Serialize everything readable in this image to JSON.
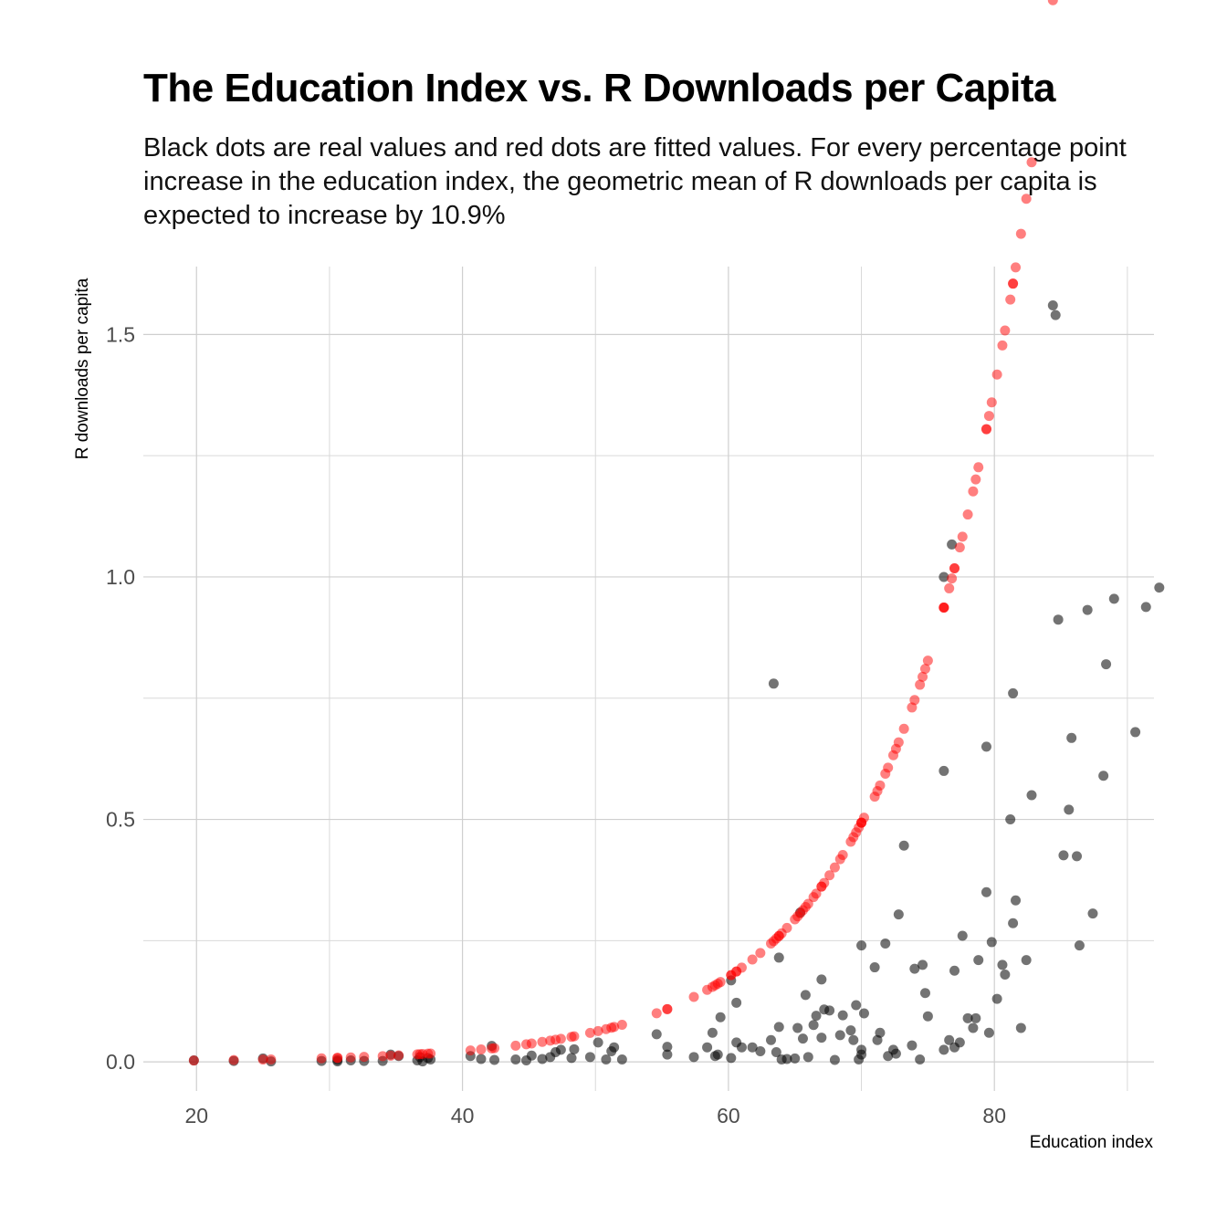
{
  "chart_data": {
    "type": "scatter",
    "title": "The Education Index vs. R Downloads per Capita",
    "subtitle": "Black dots are real values and red dots are fitted values. For every percentage point increase in the education index, the geometric mean of R downloads per capita is expected to increase by 10.9%",
    "xlabel": "Education index",
    "ylabel": "R downloads per capita",
    "xlim": [
      16,
      92
    ],
    "ylim": [
      -0.06,
      1.64
    ],
    "x_ticks": [
      20,
      40,
      60,
      80
    ],
    "x_tick_labels": [
      "20",
      "40",
      "60",
      "80"
    ],
    "y_ticks": [
      0.0,
      0.5,
      1.0,
      1.5
    ],
    "y_tick_labels": [
      "0.0",
      "0.5",
      "1.0",
      "1.5"
    ],
    "grid": true,
    "legend": "none",
    "colors": {
      "real": "#000000",
      "fitted": "#ff0000",
      "grid": "#d9d9d9"
    },
    "fitted_model": {
      "a": 0.000352,
      "b": 0.1035,
      "formula": "y = a * exp(b * x)"
    },
    "series": [
      {
        "name": "real",
        "points": [
          [
            19.8,
            0.003
          ],
          [
            22.8,
            0.002
          ],
          [
            25.0,
            0.007
          ],
          [
            25.6,
            0.001
          ],
          [
            29.4,
            0.002
          ],
          [
            30.6,
            0.004
          ],
          [
            30.6,
            0.001
          ],
          [
            31.6,
            0.003
          ],
          [
            32.6,
            0.002
          ],
          [
            34.0,
            0.002
          ],
          [
            34.6,
            0.015
          ],
          [
            35.2,
            0.012
          ],
          [
            36.6,
            0.003
          ],
          [
            36.8,
            0.01
          ],
          [
            37.0,
            0.001
          ],
          [
            37.4,
            0.008
          ],
          [
            37.6,
            0.005
          ],
          [
            40.6,
            0.012
          ],
          [
            41.4,
            0.006
          ],
          [
            42.2,
            0.033
          ],
          [
            42.4,
            0.004
          ],
          [
            44.0,
            0.005
          ],
          [
            44.8,
            0.003
          ],
          [
            45.2,
            0.013
          ],
          [
            46.0,
            0.006
          ],
          [
            46.6,
            0.01
          ],
          [
            47.0,
            0.02
          ],
          [
            47.4,
            0.025
          ],
          [
            48.2,
            0.008
          ],
          [
            48.4,
            0.026
          ],
          [
            49.6,
            0.01
          ],
          [
            50.2,
            0.04
          ],
          [
            50.8,
            0.005
          ],
          [
            51.2,
            0.022
          ],
          [
            51.4,
            0.03
          ],
          [
            52.0,
            0.005
          ],
          [
            54.6,
            0.057
          ],
          [
            55.4,
            0.031
          ],
          [
            55.4,
            0.015
          ],
          [
            57.4,
            0.01
          ],
          [
            58.4,
            0.03
          ],
          [
            58.8,
            0.06
          ],
          [
            59.0,
            0.012
          ],
          [
            59.2,
            0.015
          ],
          [
            59.4,
            0.092
          ],
          [
            60.2,
            0.008
          ],
          [
            60.2,
            0.168
          ],
          [
            60.6,
            0.04
          ],
          [
            60.6,
            0.122
          ],
          [
            61.0,
            0.03
          ],
          [
            61.8,
            0.03
          ],
          [
            62.4,
            0.022
          ],
          [
            63.2,
            0.045
          ],
          [
            63.4,
            0.78
          ],
          [
            63.6,
            0.02
          ],
          [
            63.8,
            0.072
          ],
          [
            63.8,
            0.215
          ],
          [
            64.0,
            0.005
          ],
          [
            64.4,
            0.006
          ],
          [
            65.0,
            0.007
          ],
          [
            65.2,
            0.07
          ],
          [
            65.4,
            0.308
          ],
          [
            65.6,
            0.048
          ],
          [
            65.8,
            0.138
          ],
          [
            66.0,
            0.01
          ],
          [
            66.4,
            0.076
          ],
          [
            66.6,
            0.095
          ],
          [
            67.0,
            0.17
          ],
          [
            67.0,
            0.05
          ],
          [
            67.2,
            0.108
          ],
          [
            67.6,
            0.106
          ],
          [
            68.0,
            0.004
          ],
          [
            68.4,
            0.055
          ],
          [
            68.6,
            0.096
          ],
          [
            69.2,
            0.065
          ],
          [
            69.4,
            0.045
          ],
          [
            69.6,
            0.117
          ],
          [
            69.8,
            0.005
          ],
          [
            70.0,
            0.24
          ],
          [
            70.0,
            0.025
          ],
          [
            70.0,
            0.015
          ],
          [
            70.2,
            0.1
          ],
          [
            71.0,
            0.195
          ],
          [
            71.2,
            0.045
          ],
          [
            71.4,
            0.06
          ],
          [
            71.8,
            0.244
          ],
          [
            72.0,
            0.012
          ],
          [
            72.4,
            0.025
          ],
          [
            72.6,
            0.017
          ],
          [
            72.8,
            0.304
          ],
          [
            73.2,
            0.446
          ],
          [
            73.8,
            0.034
          ],
          [
            74.0,
            0.192
          ],
          [
            74.4,
            0.005
          ],
          [
            74.6,
            0.2
          ],
          [
            74.8,
            0.142
          ],
          [
            75.0,
            0.094
          ],
          [
            76.2,
            1.0
          ],
          [
            76.2,
            0.6
          ],
          [
            76.2,
            0.025
          ],
          [
            76.6,
            0.045
          ],
          [
            76.8,
            1.067
          ],
          [
            77.0,
            0.188
          ],
          [
            77.0,
            0.03
          ],
          [
            77.4,
            0.04
          ],
          [
            77.6,
            0.26
          ],
          [
            78.0,
            0.09
          ],
          [
            78.4,
            0.07
          ],
          [
            78.8,
            0.21
          ],
          [
            78.6,
            0.09
          ],
          [
            79.4,
            0.35
          ],
          [
            79.4,
            0.65
          ],
          [
            79.6,
            0.06
          ],
          [
            79.8,
            0.247
          ],
          [
            80.2,
            0.13
          ],
          [
            80.6,
            0.2
          ],
          [
            80.8,
            0.18
          ],
          [
            81.2,
            0.5
          ],
          [
            81.4,
            0.286
          ],
          [
            81.4,
            0.76
          ],
          [
            81.6,
            0.333
          ],
          [
            82.0,
            0.07
          ],
          [
            82.4,
            0.21
          ],
          [
            82.8,
            0.55
          ],
          [
            84.4,
            1.56
          ],
          [
            84.6,
            1.54
          ],
          [
            84.8,
            0.912
          ],
          [
            85.2,
            0.426
          ],
          [
            85.6,
            0.52
          ],
          [
            85.8,
            0.668
          ],
          [
            86.2,
            0.424
          ],
          [
            86.4,
            0.24
          ],
          [
            87.0,
            0.932
          ],
          [
            87.4,
            0.306
          ],
          [
            88.2,
            0.59
          ],
          [
            88.4,
            0.82
          ],
          [
            89.0,
            0.955
          ],
          [
            90.6,
            0.68
          ],
          [
            91.4,
            0.938
          ],
          [
            92.4,
            0.978
          ]
        ]
      },
      {
        "name": "fitted",
        "points": "computed from fitted_model at each real x"
      }
    ]
  }
}
